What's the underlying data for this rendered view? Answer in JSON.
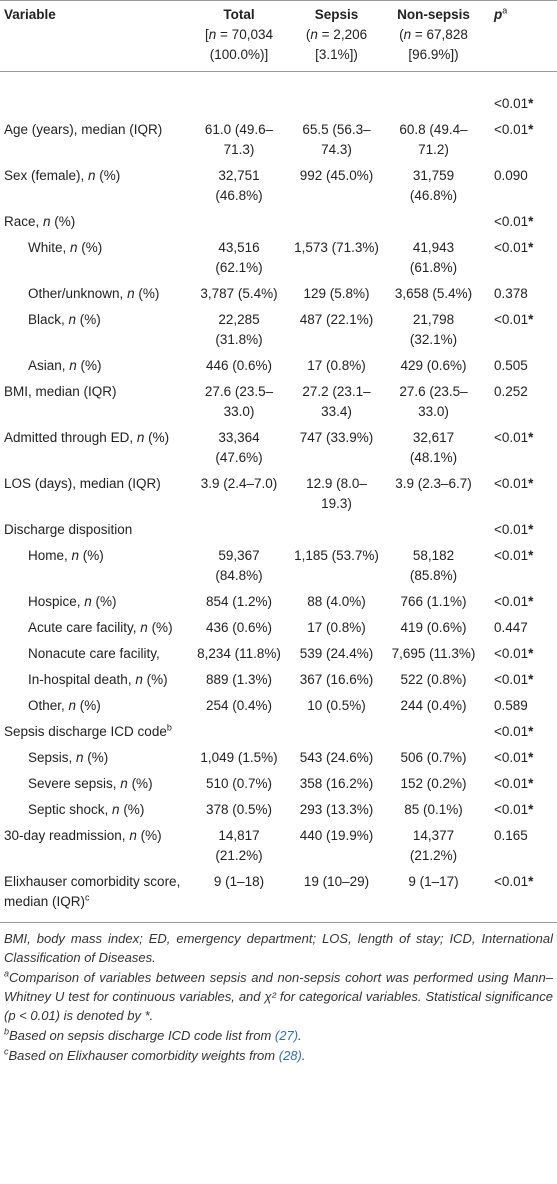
{
  "table": {
    "header": [
      {
        "text": "Variable"
      },
      {
        "text": "Total",
        "sub": [
          "[",
          "n",
          " = 70,034 (100.0%)]"
        ]
      },
      {
        "text": "Sepsis",
        "sub": [
          "(",
          "n",
          " = 2,206 [3.1%])"
        ]
      },
      {
        "text": "Non-sepsis",
        "sub": [
          "(",
          "n",
          " = 67,828 [96.9%])"
        ]
      },
      {
        "text": [
          "",
          "p"
        ],
        "sup": "a"
      }
    ],
    "rows": [
      {
        "label": null,
        "values": [
          null,
          null,
          null,
          [
            "<0.01",
            "*"
          ]
        ]
      },
      {
        "label": "Age (years), median (IQR)",
        "values": [
          "61.0 (49.6–71.3)",
          "65.5 (56.3–74.3)",
          "60.8 (49.4–71.2)",
          [
            "<0.01",
            "*"
          ]
        ]
      },
      {
        "label": [
          "Sex (female), ",
          "n",
          " (%)"
        ],
        "values": [
          "32,751 (46.8%)",
          "992 (45.0%)",
          "31,759 (46.8%)",
          "0.090"
        ]
      },
      {
        "label": [
          "Race, ",
          "n",
          " (%)"
        ],
        "values": [
          null,
          null,
          null,
          [
            "<0.01",
            "*"
          ]
        ]
      },
      {
        "label": [
          "White, ",
          "n",
          " (%)"
        ],
        "indent": true,
        "values": [
          "43,516 (62.1%)",
          "1,573 (71.3%)",
          "41,943 (61.8%)",
          [
            "<0.01",
            "*"
          ]
        ]
      },
      {
        "label": [
          "Other/unknown, ",
          "n",
          " (%)"
        ],
        "indent": true,
        "values": [
          "3,787 (5.4%)",
          "129 (5.8%)",
          "3,658 (5.4%)",
          "0.378"
        ]
      },
      {
        "label": [
          "Black, ",
          "n",
          " (%)"
        ],
        "indent": true,
        "values": [
          "22,285 (31.8%)",
          "487 (22.1%)",
          "21,798 (32.1%)",
          [
            "<0.01",
            "*"
          ]
        ]
      },
      {
        "label": [
          "Asian, ",
          "n",
          " (%)"
        ],
        "indent": true,
        "values": [
          "446 (0.6%)",
          "17 (0.8%)",
          "429 (0.6%)",
          "0.505"
        ]
      },
      {
        "label": "BMI, median (IQR)",
        "values": [
          "27.6 (23.5–33.0)",
          "27.2 (23.1–33.4)",
          "27.6 (23.5–33.0)",
          "0.252"
        ]
      },
      {
        "label": [
          "Admitted through ED, ",
          "n",
          " (%)"
        ],
        "values": [
          "33,364 (47.6%)",
          "747 (33.9%)",
          "32,617 (48.1%)",
          [
            "<0.01",
            "*"
          ]
        ]
      },
      {
        "label": "LOS (days), median (IQR)",
        "values": [
          "3.9 (2.4–7.0)",
          "12.9 (8.0–19.3)",
          "3.9 (2.3–6.7)",
          [
            "<0.01",
            "*"
          ]
        ]
      },
      {
        "label": "Discharge disposition",
        "values": [
          null,
          null,
          null,
          [
            "<0.01",
            "*"
          ]
        ]
      },
      {
        "label": [
          "Home, ",
          "n",
          " (%)"
        ],
        "indent": true,
        "values": [
          "59,367 (84.8%)",
          "1,185 (53.7%)",
          "58,182 (85.8%)",
          [
            "<0.01",
            "*"
          ]
        ]
      },
      {
        "label": [
          "Hospice, ",
          "n",
          " (%)"
        ],
        "indent": true,
        "values": [
          "854 (1.2%)",
          "88 (4.0%)",
          "766 (1.1%)",
          [
            "<0.01",
            "*"
          ]
        ]
      },
      {
        "label": [
          "Acute care facility, ",
          "n",
          " (%)"
        ],
        "indent": true,
        "values": [
          "436 (0.6%)",
          "17 (0.8%)",
          "419 (0.6%)",
          "0.447"
        ]
      },
      {
        "label": "Nonacute care facility,",
        "indent": true,
        "values": [
          "8,234 (11.8%)",
          "539 (24.4%)",
          "7,695 (11.3%)",
          [
            "<0.01",
            "*"
          ]
        ]
      },
      {
        "label": [
          "In-hospital death, ",
          "n",
          " (%)"
        ],
        "indent": true,
        "values": [
          "889 (1.3%)",
          "367 (16.6%)",
          "522 (0.8%)",
          [
            "<0.01",
            "*"
          ]
        ]
      },
      {
        "label": [
          "Other, ",
          "n",
          " (%)"
        ],
        "indent": true,
        "values": [
          "254 (0.4%)",
          "10 (0.5%)",
          "244 (0.4%)",
          "0.589"
        ]
      },
      {
        "label": "Sepsis discharge ICD code",
        "sup": "b",
        "values": [
          null,
          null,
          null,
          [
            "<0.01",
            "*"
          ]
        ]
      },
      {
        "label": [
          "Sepsis, ",
          "n",
          " (%)"
        ],
        "indent": true,
        "values": [
          "1,049 (1.5%)",
          "543 (24.6%)",
          "506 (0.7%)",
          [
            "<0.01",
            "*"
          ]
        ]
      },
      {
        "label": [
          "Severe sepsis, ",
          "n",
          " (%)"
        ],
        "indent": true,
        "values": [
          "510 (0.7%)",
          "358 (16.2%)",
          "152 (0.2%)",
          [
            "<0.01",
            "*"
          ]
        ]
      },
      {
        "label": [
          "Septic shock, ",
          "n",
          " (%)"
        ],
        "indent": true,
        "values": [
          "378 (0.5%)",
          "293 (13.3%)",
          "85 (0.1%)",
          [
            "<0.01",
            "*"
          ]
        ]
      },
      {
        "label": [
          "30-day readmission, ",
          "n",
          " (%)"
        ],
        "values": [
          "14,817 (21.2%)",
          "440 (19.9%)",
          "14,377 (21.2%)",
          "0.165"
        ]
      },
      {
        "label": "Elixhauser comorbidity score, median (IQR)",
        "sup": "c",
        "values": [
          "9 (1–18)",
          "19 (10–29)",
          "9 (1–17)",
          [
            "<0.01",
            "*"
          ]
        ]
      }
    ],
    "footnotes": [
      {
        "text": "BMI, body mass index; ED, emergency department; LOS, length of stay; ICD, International Classification of Diseases."
      },
      {
        "sup": "a",
        "text": "Comparison of variables between sepsis and non-sepsis cohort was performed using Mann–Whitney U test for continuous variables, and χ² for categorical variables. Statistical significance (p < 0.01) is denoted by *."
      },
      {
        "sup": "b",
        "text": [
          "Based on sepsis discharge ICD code list from ",
          "(27)",
          "."
        ]
      },
      {
        "sup": "c",
        "text": [
          "Based on Elixhauser comorbidity weights from ",
          "(28)",
          "."
        ]
      }
    ]
  }
}
